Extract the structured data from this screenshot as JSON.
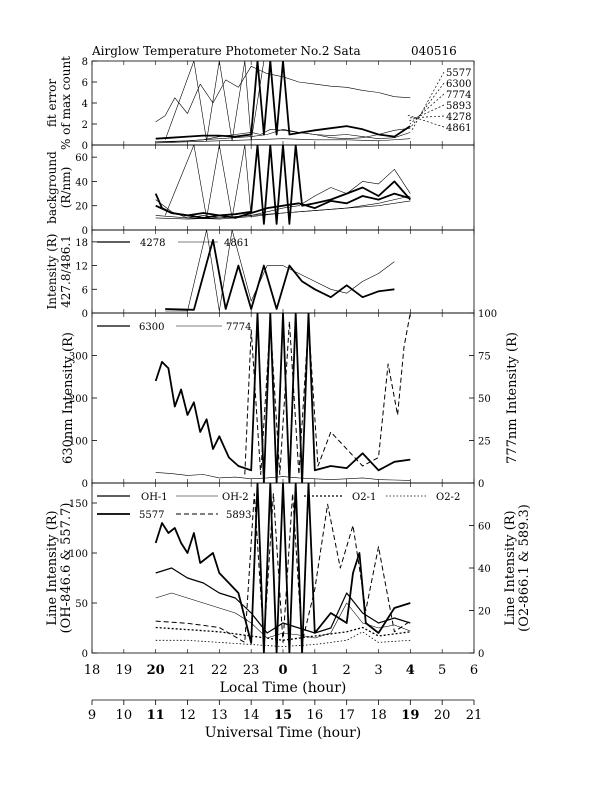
{
  "title": "Airglow Temperature Photometer No.2  Sata",
  "date_code": "040516",
  "chart_data": [
    {
      "id": "fit-error",
      "type": "line",
      "ylabel_lines": [
        "fit error",
        "% of max count"
      ],
      "ylim": [
        0,
        8
      ],
      "yticks": [
        0,
        2,
        4,
        6,
        8
      ],
      "legend_labels": [
        "5577",
        "6300",
        "7774",
        "5893",
        "4278",
        "4861"
      ],
      "series": [
        {
          "name": "5577",
          "style": "thin",
          "x": [
            11.0,
            11.3,
            11.6,
            12.0,
            12.4,
            12.8,
            13.2,
            13.6,
            14.0,
            14.5,
            15.0,
            15.5,
            16.0,
            16.5,
            17.0,
            17.5,
            18.0,
            18.5,
            19.0
          ],
          "y": [
            2.2,
            2.8,
            4.5,
            3.0,
            5.8,
            4.0,
            6.2,
            5.5,
            7.5,
            6.8,
            6.5,
            6.0,
            5.8,
            5.6,
            5.5,
            5.2,
            5.0,
            4.6,
            4.5
          ]
        },
        {
          "name": "6300",
          "style": "thick",
          "x": [
            11.0,
            11.5,
            12.0,
            12.5,
            13.0,
            13.5,
            14.0,
            14.2,
            14.4,
            14.6,
            14.8,
            15.0,
            15.2,
            15.6,
            16.0,
            16.5,
            17.0,
            17.5,
            18.0,
            18.5,
            19.0
          ],
          "y": [
            0.6,
            0.7,
            0.8,
            0.9,
            0.9,
            0.8,
            1.0,
            8.0,
            1.0,
            8.0,
            1.0,
            8.0,
            1.0,
            1.2,
            1.4,
            1.6,
            1.8,
            1.5,
            1.0,
            0.8,
            1.8
          ]
        },
        {
          "name": "7774",
          "style": "thin",
          "x": [
            11.0,
            12.0,
            13.0,
            14.0,
            14.5,
            15.0,
            15.5,
            16.0,
            16.5,
            17.0,
            17.5,
            18.0,
            18.5,
            19.0
          ],
          "y": [
            0.3,
            0.4,
            0.6,
            0.8,
            1.0,
            1.5,
            1.2,
            1.0,
            0.9,
            1.0,
            0.8,
            0.6,
            0.7,
            1.2
          ]
        },
        {
          "name": "5893",
          "style": "thin",
          "x": [
            11.0,
            11.5,
            12.0,
            12.5,
            13.0,
            13.5,
            14.0,
            14.3,
            14.6,
            15.0,
            15.5,
            16.0,
            16.5,
            17.0,
            17.5,
            18.0,
            18.5,
            19.0
          ],
          "y": [
            0.3,
            0.3,
            0.4,
            0.5,
            0.8,
            1.0,
            1.2,
            1.0,
            1.5,
            1.4,
            1.2,
            1.0,
            0.7,
            0.6,
            0.7,
            1.0,
            1.4,
            1.6
          ]
        },
        {
          "name": "4278",
          "style": "thin",
          "x": [
            11.3,
            12.2,
            12.6,
            13.0,
            13.4,
            13.8,
            14.0,
            14.4
          ],
          "y": [
            0.5,
            8.0,
            0.4,
            8.0,
            0.4,
            8.0,
            0.4,
            8.0
          ]
        },
        {
          "name": "4861",
          "style": "thin",
          "x": [
            11.0,
            12.0,
            13.0,
            14.0,
            15.0,
            16.0,
            17.0,
            18.0,
            19.0
          ],
          "y": [
            0.2,
            0.3,
            0.4,
            0.5,
            0.6,
            0.5,
            0.5,
            0.4,
            0.6
          ]
        }
      ]
    },
    {
      "id": "background",
      "type": "line",
      "ylabel_lines": [
        "background",
        "(R/nm)"
      ],
      "ylim": [
        0,
        70
      ],
      "yticks": [
        0,
        20,
        40,
        60
      ],
      "series": [
        {
          "name": "5577",
          "style": "thick",
          "x": [
            11.0,
            11.2,
            11.5,
            12.0,
            12.5,
            13.0,
            13.5,
            14.0,
            14.2,
            14.4,
            14.6,
            14.8,
            15.0,
            15.2,
            15.4,
            15.6,
            16.0,
            16.5,
            17.0,
            17.5,
            18.0,
            18.5,
            19.0
          ],
          "y": [
            30,
            18,
            14,
            12,
            14,
            12,
            13,
            15,
            70,
            5,
            70,
            5,
            70,
            5,
            70,
            20,
            22,
            25,
            30,
            35,
            28,
            40,
            25
          ]
        },
        {
          "name": "6300",
          "style": "thin",
          "x": [
            11.0,
            11.5,
            12.0,
            12.5,
            13.0,
            13.5,
            14.0,
            14.5,
            15.0,
            15.5,
            16.0,
            16.5,
            17.0,
            17.5,
            18.0,
            18.5,
            19.0
          ],
          "y": [
            25,
            15,
            10,
            12,
            10,
            11,
            12,
            15,
            18,
            20,
            28,
            35,
            30,
            40,
            38,
            50,
            30
          ]
        },
        {
          "name": "7774",
          "style": "thin",
          "x": [
            11.0,
            12.0,
            13.0,
            14.0,
            15.0,
            16.0,
            17.0,
            18.0,
            19.0
          ],
          "y": [
            12,
            10,
            9,
            11,
            14,
            16,
            18,
            20,
            24
          ]
        },
        {
          "name": "5893",
          "style": "thick",
          "x": [
            11.0,
            11.5,
            12.0,
            12.5,
            13.0,
            13.5,
            14.0,
            14.5,
            15.0,
            15.5,
            16.0,
            16.5,
            17.0,
            17.5,
            18.0,
            18.5,
            19.0
          ],
          "y": [
            20,
            14,
            12,
            10,
            12,
            10,
            14,
            18,
            20,
            22,
            18,
            24,
            22,
            28,
            25,
            30,
            26
          ]
        },
        {
          "name": "4278",
          "style": "thin",
          "x": [
            11.3,
            12.2,
            12.6,
            13.0,
            13.4,
            13.8,
            14.0
          ],
          "y": [
            12,
            70,
            10,
            70,
            10,
            70,
            10
          ]
        },
        {
          "name": "4861",
          "style": "thin",
          "x": [
            11.0,
            12.0,
            13.0,
            14.0,
            15.0,
            16.0,
            17.0,
            18.0,
            19.0
          ],
          "y": [
            10,
            9,
            10,
            12,
            14,
            16,
            18,
            22,
            28
          ]
        }
      ]
    },
    {
      "id": "intensity-4278-4861",
      "type": "line",
      "ylabel_lines": [
        "Intensity (R)",
        "427.8/486.1"
      ],
      "ylim": [
        0,
        21
      ],
      "yticks": [
        0,
        6,
        12,
        18
      ],
      "legend_labels": [
        "4278",
        "4861"
      ],
      "series": [
        {
          "name": "4278",
          "style": "thick",
          "x": [
            11.3,
            12.2,
            12.8,
            13.2,
            13.6,
            14.0,
            14.4,
            14.8,
            15.2,
            15.6,
            16.0,
            16.5,
            17.0,
            17.5,
            18.0,
            18.5
          ],
          "y": [
            1.0,
            0.8,
            18.5,
            1.0,
            12.0,
            1.0,
            12.0,
            1.0,
            12.0,
            8.0,
            6.0,
            4.0,
            7.0,
            4.0,
            5.5,
            6.0
          ]
        },
        {
          "name": "4861",
          "style": "thin",
          "x": [
            11.3,
            12.0,
            12.6,
            13.0,
            13.4,
            14.0,
            14.5,
            15.0,
            15.5,
            16.0,
            16.5,
            17.0,
            17.5,
            18.0,
            18.5
          ],
          "y": [
            0.5,
            0.5,
            21.0,
            0.5,
            21.0,
            3.0,
            12.0,
            12.0,
            10.0,
            8.0,
            6.0,
            5.0,
            8.0,
            10.0,
            13.0
          ]
        }
      ]
    },
    {
      "id": "intensity-6300-7774",
      "type": "line",
      "ylabel": "630nm Intensity (R)",
      "ylabel_right": "777nm Intensity (R)",
      "ylim": [
        0,
        400
      ],
      "ylim_right": [
        0,
        100
      ],
      "yticks": [
        0,
        100,
        200,
        300
      ],
      "yticks_right": [
        0,
        25,
        50,
        75,
        100
      ],
      "legend_labels": [
        "6300",
        "7774"
      ],
      "series": [
        {
          "name": "6300",
          "style": "thick",
          "x": [
            11.0,
            11.2,
            11.4,
            11.6,
            11.8,
            12.0,
            12.2,
            12.4,
            12.6,
            12.8,
            13.0,
            13.3,
            13.6,
            14.0,
            14.2,
            14.4,
            14.6,
            14.8,
            15.0,
            15.2,
            15.4,
            15.6,
            15.8,
            16.0,
            16.5,
            17.0,
            17.5,
            18.0,
            18.5,
            19.0
          ],
          "y": [
            240,
            285,
            270,
            180,
            220,
            160,
            190,
            120,
            150,
            80,
            110,
            60,
            40,
            30,
            400,
            0,
            400,
            0,
            400,
            0,
            400,
            0,
            400,
            30,
            40,
            35,
            70,
            30,
            50,
            55
          ]
        },
        {
          "name": "7774",
          "style": "thin",
          "x": [
            11.0,
            11.5,
            12.0,
            12.5,
            13.0,
            13.5,
            14.0,
            14.5,
            15.0,
            15.5,
            16.0,
            16.5,
            17.0,
            17.5,
            18.0,
            18.5,
            19.0
          ],
          "y": [
            25,
            22,
            18,
            20,
            12,
            14,
            10,
            12,
            15,
            12,
            10,
            8,
            10,
            12,
            8,
            7,
            6
          ]
        },
        {
          "name": "7774-dashed",
          "style": "dashed",
          "axis": "right",
          "x": [
            13.8,
            14.0,
            14.3,
            14.6,
            14.9,
            15.2,
            15.5,
            15.8,
            16.1,
            16.5,
            17.0,
            17.5,
            18.0,
            18.3,
            18.6,
            18.8,
            19.0
          ],
          "y": [
            5,
            90,
            5,
            95,
            5,
            95,
            5,
            95,
            10,
            30,
            20,
            10,
            15,
            70,
            40,
            80,
            100
          ]
        }
      ]
    },
    {
      "id": "line-intensity",
      "type": "line",
      "ylabel_lines": [
        "Line Intensity (R)",
        "(OH-846.6 & 557.7)"
      ],
      "ylabel_right_lines": [
        "Line Intensity (R)",
        "(O2-866.1 & 589.3)"
      ],
      "ylim": [
        0,
        170
      ],
      "ylim_right": [
        0,
        80
      ],
      "yticks": [
        0,
        50,
        100,
        150
      ],
      "yticks_right": [
        0,
        20,
        40,
        60
      ],
      "legend_labels": [
        "OH-1",
        "OH-2",
        "O2-1",
        "O2-2",
        "5577",
        "5893"
      ],
      "series": [
        {
          "name": "5577",
          "style": "thick",
          "x": [
            11.0,
            11.2,
            11.4,
            11.6,
            11.8,
            12.0,
            12.2,
            12.4,
            12.6,
            12.8,
            13.0,
            13.3,
            13.6,
            14.0,
            14.2,
            14.4,
            14.6,
            14.8,
            15.0,
            15.2,
            15.4,
            15.6,
            15.8,
            16.0,
            16.5,
            17.0,
            17.2,
            17.4,
            17.6,
            18.0,
            18.5,
            19.0
          ],
          "y": [
            110,
            130,
            120,
            125,
            110,
            100,
            120,
            90,
            95,
            100,
            80,
            70,
            60,
            10,
            170,
            0,
            170,
            0,
            170,
            0,
            170,
            0,
            170,
            20,
            40,
            30,
            80,
            100,
            30,
            20,
            45,
            50
          ]
        },
        {
          "name": "OH-1",
          "style": "medium",
          "x": [
            11.0,
            11.5,
            12.0,
            12.5,
            13.0,
            13.5,
            14.0,
            14.5,
            15.0,
            15.5,
            16.0,
            16.5,
            17.0,
            17.5,
            18.0,
            18.5,
            19.0
          ],
          "y": [
            80,
            85,
            75,
            70,
            60,
            55,
            40,
            20,
            30,
            25,
            20,
            25,
            60,
            40,
            30,
            35,
            30
          ]
        },
        {
          "name": "OH-2",
          "style": "thin",
          "x": [
            11.0,
            11.5,
            12.0,
            12.5,
            13.0,
            13.5,
            14.0,
            14.5,
            15.0,
            15.5,
            16.0,
            16.5,
            17.0,
            17.5,
            18.0,
            18.5,
            19.0
          ],
          "y": [
            55,
            60,
            55,
            50,
            45,
            40,
            30,
            15,
            20,
            18,
            15,
            20,
            50,
            30,
            25,
            28,
            22
          ]
        },
        {
          "name": "O2-1",
          "style": "dotted",
          "axis": "right",
          "x": [
            11.0,
            12.0,
            13.0,
            14.0,
            15.0,
            16.0,
            17.0,
            17.5,
            18.0,
            19.0
          ],
          "y": [
            12,
            11,
            10,
            8,
            6,
            8,
            10,
            12,
            8,
            10
          ]
        },
        {
          "name": "O2-2",
          "style": "dotted-thin",
          "axis": "right",
          "x": [
            11.0,
            12.0,
            13.0,
            14.0,
            15.0,
            16.0,
            17.0,
            17.5,
            18.0,
            19.0
          ],
          "y": [
            6,
            6,
            5,
            4,
            3,
            4,
            6,
            10,
            5,
            6
          ]
        },
        {
          "name": "5893",
          "style": "dashed",
          "axis": "right",
          "x": [
            11.0,
            12.0,
            13.0,
            13.8,
            14.1,
            14.4,
            14.7,
            15.0,
            15.3,
            15.6,
            16.0,
            16.4,
            16.8,
            17.2,
            17.6,
            18.0,
            18.5,
            19.0
          ],
          "y": [
            15,
            14,
            12,
            5,
            75,
            5,
            75,
            5,
            75,
            5,
            30,
            70,
            40,
            60,
            20,
            50,
            10,
            15
          ]
        }
      ]
    }
  ],
  "x_axis": {
    "label": "Local Time (hour)",
    "ticks": [
      "18",
      "19",
      "20",
      "21",
      "22",
      "23",
      "0",
      "1",
      "2",
      "3",
      "4",
      "5",
      "6"
    ],
    "bold_ticks": [
      "20",
      "0",
      "4"
    ]
  },
  "x_axis_ut": {
    "label": "Universal Time (hour)",
    "ticks": [
      "9",
      "10",
      "11",
      "12",
      "13",
      "14",
      "15",
      "16",
      "17",
      "18",
      "19",
      "20",
      "21"
    ],
    "bold_ticks": [
      "11",
      "15",
      "19"
    ]
  }
}
